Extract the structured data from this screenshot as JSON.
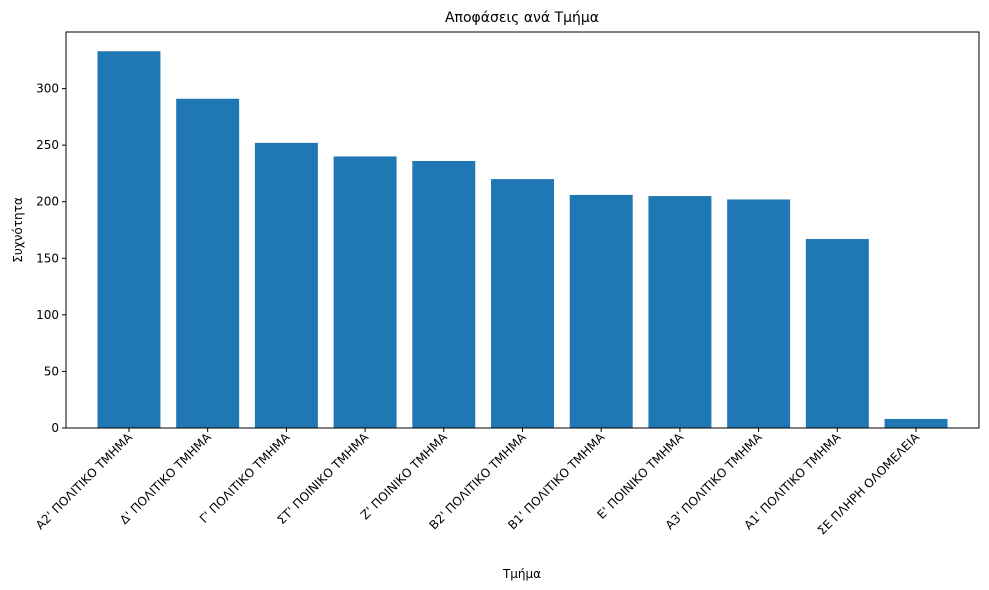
{
  "chart_data": {
    "type": "bar",
    "title": "Αποφάσεις ανά Τμήμα",
    "xlabel": "Τμήμα",
    "ylabel": "Συχνότητα",
    "categories": [
      "Α2' ΠΟΛΙΤΙΚΟ ΤΜΗΜΑ",
      "Δ' ΠΟΛΙΤΙΚΟ ΤΜΗΜΑ",
      "Γ' ΠΟΛΙΤΙΚΟ ΤΜΗΜΑ",
      "ΣΤ' ΠΟΙΝΙΚΟ ΤΜΗΜΑ",
      "Ζ' ΠΟΙΝΙΚΟ ΤΜΗΜΑ",
      "Β2' ΠΟΛΙΤΙΚΟ ΤΜΗΜΑ",
      "Β1' ΠΟΛΙΤΙΚΟ ΤΜΗΜΑ",
      "Ε' ΠΟΙΝΙΚΟ ΤΜΗΜΑ",
      "Α3' ΠΟΛΙΤΙΚΟ ΤΜΗΜΑ",
      "Α1' ΠΟΛΙΤΙΚΟ ΤΜΗΜΑ",
      "ΣΕ ΠΛΗΡΗ ΟΛΟΜΕΛΕΙΑ"
    ],
    "values": [
      333,
      291,
      252,
      240,
      236,
      220,
      206,
      205,
      202,
      167,
      8
    ],
    "ylim": [
      0,
      350
    ],
    "yticks": [
      0,
      50,
      100,
      150,
      200,
      250,
      300
    ],
    "grid": false,
    "bar_color": "#1f77b4"
  }
}
